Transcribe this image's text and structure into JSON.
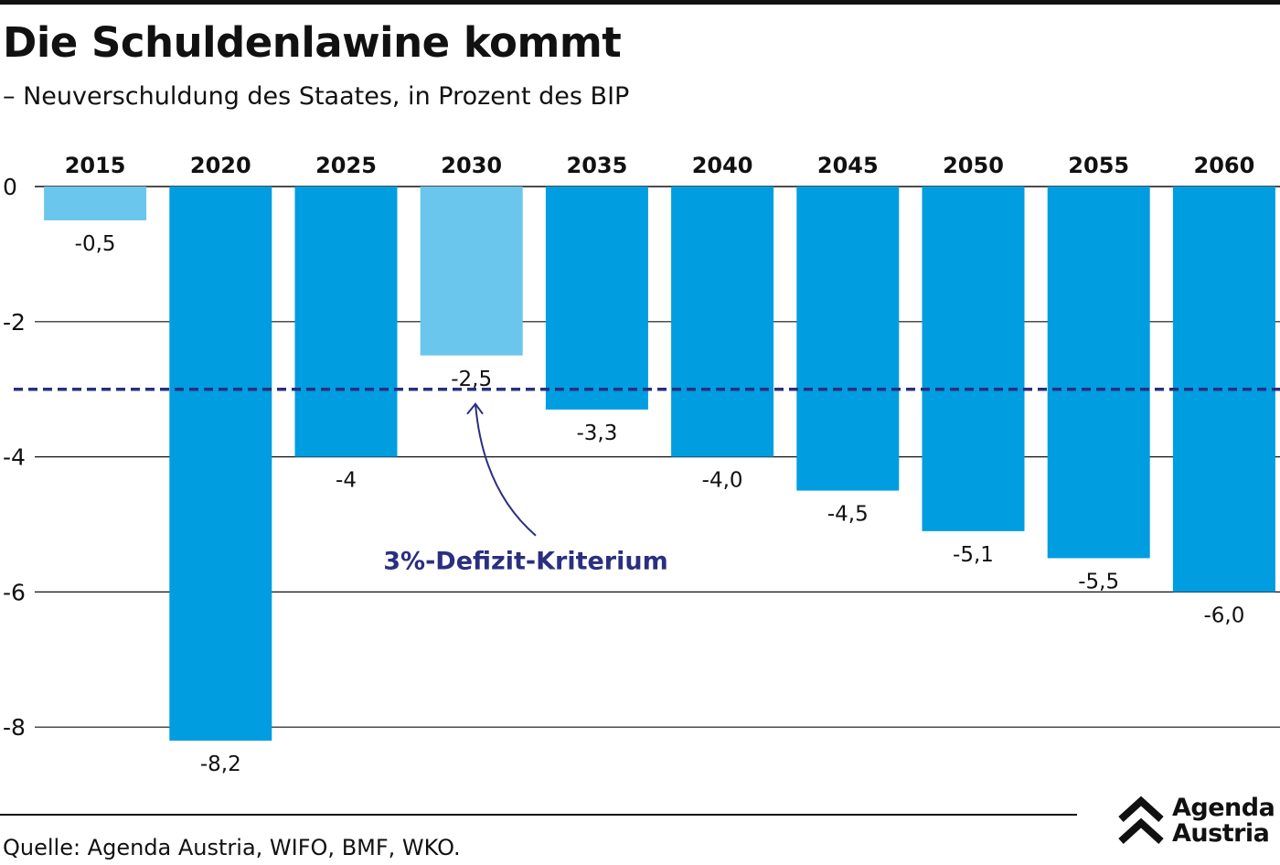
{
  "header": {
    "title": "Die Schuldenlawine kommt",
    "subtitle": "– Neuverschuldung des Staates, in Prozent des BIP"
  },
  "footer": {
    "source": "Quelle: Agenda Austria, WIFO, BMF, WKO."
  },
  "logo": {
    "line1": "Agenda",
    "line2": "Austria",
    "icon": "double-chevron-up-icon"
  },
  "colors": {
    "bar_primary": "#009de0",
    "bar_light": "#6ac6ed",
    "threshold_line": "#2a2f80",
    "text": "#111111"
  },
  "chart_data": {
    "type": "bar",
    "categories": [
      "2015",
      "2020",
      "2025",
      "2030",
      "2035",
      "2040",
      "2045",
      "2050",
      "2055",
      "2060"
    ],
    "values": [
      -0.5,
      -8.2,
      -4,
      -2.5,
      -3.3,
      -4.0,
      -4.5,
      -5.1,
      -5.5,
      -6.0
    ],
    "value_labels": [
      "-0,5",
      "-8,2",
      "-4",
      "-2,5",
      "-3,3",
      "-4,0",
      "-4,5",
      "-5,1",
      "-5,5",
      "-6,0"
    ],
    "highlighted": [
      true,
      false,
      false,
      true,
      false,
      false,
      false,
      false,
      false,
      false
    ],
    "y_ticks": [
      0,
      -2,
      -4,
      -6,
      -8
    ],
    "y_tick_labels": [
      "0",
      "-2",
      "-4",
      "-6",
      "-8"
    ],
    "ylim": [
      -8.4,
      0
    ],
    "grid": true,
    "threshold": {
      "value": -3,
      "label": "3%-Defizit-Kriterium"
    }
  }
}
